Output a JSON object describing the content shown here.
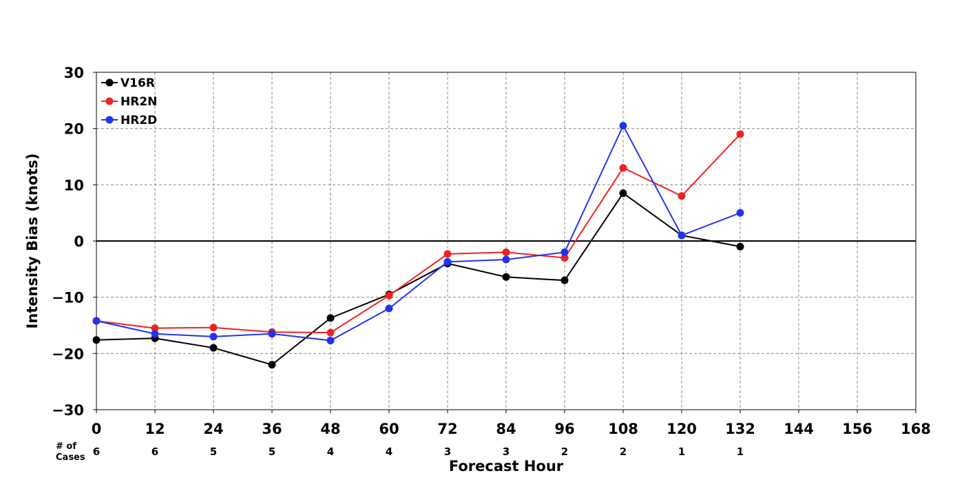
{
  "chart_data": {
    "type": "line",
    "xlabel": "Forecast Hour",
    "ylabel": "Intensity Bias (knots)",
    "xlim": [
      0,
      168
    ],
    "ylim": [
      -30,
      30
    ],
    "x_ticks": [
      0,
      12,
      24,
      36,
      48,
      60,
      72,
      84,
      96,
      108,
      120,
      132,
      144,
      156,
      168
    ],
    "y_ticks": [
      30,
      20,
      10,
      0,
      -10,
      -20,
      -30
    ],
    "y_tick_labels": [
      "30",
      "20",
      "10",
      "0",
      "−10",
      "−20",
      "−30"
    ],
    "grid": true,
    "legend_position": "top-left",
    "cases_label_line1": "# of",
    "cases_label_line2": "Cases",
    "cases": [
      {
        "x": 0,
        "n": "6"
      },
      {
        "x": 12,
        "n": "6"
      },
      {
        "x": 24,
        "n": "5"
      },
      {
        "x": 36,
        "n": "5"
      },
      {
        "x": 48,
        "n": "4"
      },
      {
        "x": 60,
        "n": "4"
      },
      {
        "x": 72,
        "n": "3"
      },
      {
        "x": 84,
        "n": "3"
      },
      {
        "x": 96,
        "n": "2"
      },
      {
        "x": 108,
        "n": "2"
      },
      {
        "x": 120,
        "n": "1"
      },
      {
        "x": 132,
        "n": "1"
      }
    ],
    "x": [
      0,
      12,
      24,
      36,
      48,
      60,
      72,
      84,
      96,
      108,
      120,
      132
    ],
    "series": [
      {
        "name": "V16R",
        "color": "#000000",
        "values": [
          -17.6,
          -17.3,
          -19.0,
          -22.0,
          -13.7,
          -9.5,
          -4.0,
          -6.4,
          -7.0,
          8.5,
          1.0,
          -1.0
        ]
      },
      {
        "name": "HR2N",
        "color": "#ee2222",
        "values": [
          -14.2,
          -15.5,
          -15.4,
          -16.2,
          -16.3,
          -9.7,
          -2.3,
          -2.0,
          -3.0,
          13.0,
          8.0,
          19.0
        ]
      },
      {
        "name": "HR2D",
        "color": "#2233ee",
        "values": [
          -14.2,
          -16.5,
          -17.0,
          -16.5,
          -17.7,
          -12.0,
          -3.7,
          -3.3,
          -2.0,
          20.5,
          1.0,
          5.0
        ]
      }
    ]
  }
}
